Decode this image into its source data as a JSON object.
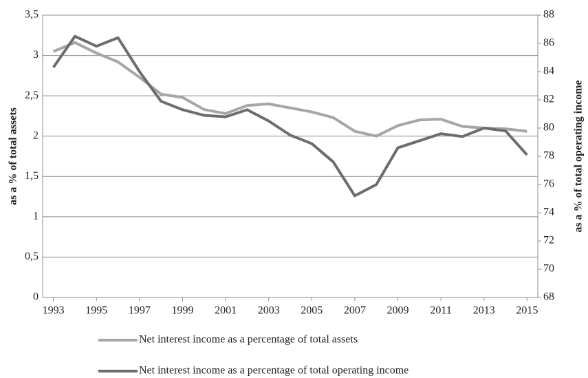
{
  "chart_data": {
    "type": "line",
    "y_label": "as a % of total assets",
    "y2_label": "as a % of total operating income",
    "x": [
      1993,
      1994,
      1995,
      1996,
      1997,
      1998,
      1999,
      2000,
      2001,
      2002,
      2003,
      2004,
      2005,
      2006,
      2007,
      2008,
      2009,
      2010,
      2011,
      2012,
      2013,
      2014,
      2015
    ],
    "xlim": [
      1992.5,
      2015.5
    ],
    "xticks": [
      1993,
      1995,
      1997,
      1999,
      2001,
      2003,
      2005,
      2007,
      2009,
      2011,
      2013,
      2015
    ],
    "ylim": [
      0,
      3.5
    ],
    "yticks": [
      0,
      {
        "value": 0.5,
        "label": "0,5"
      },
      1,
      {
        "value": 1.5,
        "label": "1,5"
      },
      2,
      {
        "value": 2.5,
        "label": "2,5"
      },
      3,
      {
        "value": 3.5,
        "label": "3,5"
      }
    ],
    "y2lim": [
      68,
      88
    ],
    "y2ticks": [
      68,
      70,
      72,
      74,
      76,
      78,
      80,
      82,
      84,
      86,
      88
    ],
    "grid": true,
    "legend": "bottom",
    "series": [
      {
        "name": "Net interest income as a percentage of total assets",
        "color": "#a6a6a6",
        "values": [
          3.05,
          3.16,
          3.03,
          2.92,
          2.73,
          2.52,
          2.48,
          2.33,
          2.28,
          2.38,
          2.4,
          2.35,
          2.3,
          2.23,
          2.06,
          2.0,
          2.13,
          2.2,
          2.21,
          2.12,
          2.1,
          2.09,
          2.06
        ]
      },
      {
        "name": "Net interest income as a percentage of total operating income",
        "color": "#6d6d6d",
        "axis": "y2",
        "values": [
          84.3,
          86.5,
          85.8,
          86.4,
          84.0,
          81.9,
          81.3,
          80.9,
          80.8,
          81.3,
          80.5,
          79.5,
          78.9,
          77.6,
          75.2,
          76.0,
          78.6,
          79.1,
          79.6,
          79.4,
          80.0,
          79.8,
          78.1
        ]
      }
    ]
  }
}
